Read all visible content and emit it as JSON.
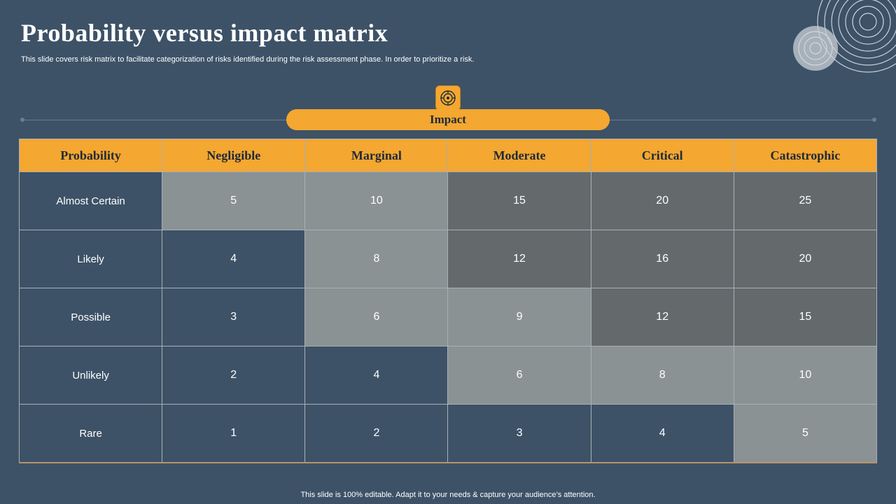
{
  "slide": {
    "title": "Probability versus impact matrix",
    "subtitle": "This slide covers risk matrix to facilitate categorization of risks identified during the risk assessment phase. In order to prioritize a risk.",
    "footer": "This slide is 100% editable. Adapt it to your needs & capture your audience’s attention."
  },
  "impact": {
    "label": "Impact",
    "icon": "impact-target-icon"
  },
  "colors": {
    "background": "#3d5267",
    "accent": "#f4a731",
    "low": "#3d5267",
    "medium": "#8a9294",
    "high": "#646a6c"
  },
  "matrix": {
    "headers": [
      "Probability",
      "Negligible",
      "Marginal",
      "Moderate",
      "Critical",
      "Catastrophic"
    ],
    "rows": [
      {
        "label": "Almost Certain",
        "values": [
          "5",
          "10",
          "15",
          "20",
          "25"
        ],
        "levels": [
          "mid",
          "mid",
          "high",
          "high",
          "high"
        ]
      },
      {
        "label": "Likely",
        "values": [
          "4",
          "8",
          "12",
          "16",
          "20"
        ],
        "levels": [
          "low",
          "mid",
          "high",
          "high",
          "high"
        ]
      },
      {
        "label": "Possible",
        "values": [
          "3",
          "6",
          "9",
          "12",
          "15"
        ],
        "levels": [
          "low",
          "mid",
          "mid",
          "high",
          "high"
        ]
      },
      {
        "label": "Unlikely",
        "values": [
          "2",
          "4",
          "6",
          "8",
          "10"
        ],
        "levels": [
          "low",
          "low",
          "mid",
          "mid",
          "mid"
        ]
      },
      {
        "label": "Rare",
        "values": [
          "1",
          "2",
          "3",
          "4",
          "5"
        ],
        "levels": [
          "low",
          "low",
          "low",
          "low",
          "mid"
        ]
      }
    ]
  }
}
